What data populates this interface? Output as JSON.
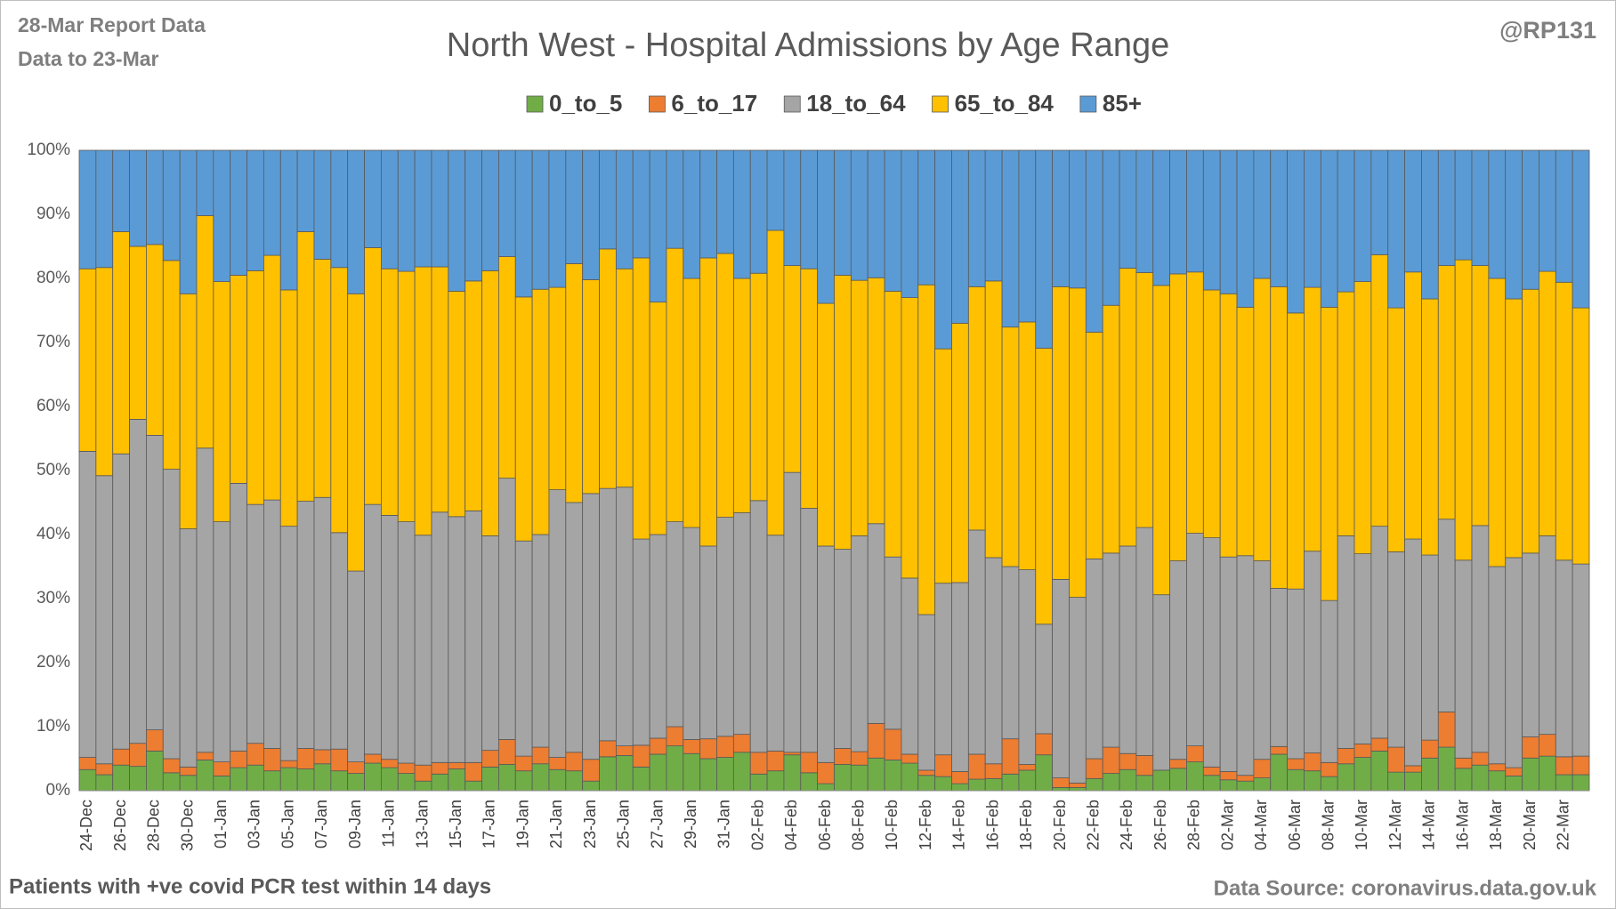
{
  "chart_data": {
    "type": "stacked_bar_100",
    "title": "North West - Hospital Admissions by Age Range",
    "report_note": "28-Mar Report Data",
    "data_note": "Data to 23-Mar",
    "author": "@RP131",
    "footnote": "Patients with  +ve covid PCR test within 14 days",
    "source": "Data Source: coronavirus.data.gov.uk",
    "legend": "top",
    "ylim": [
      0,
      100
    ],
    "yticks": [
      {
        "value": 0,
        "label": "0%"
      },
      {
        "value": 10,
        "label": "10%"
      },
      {
        "value": 20,
        "label": "20%"
      },
      {
        "value": 30,
        "label": "30%"
      },
      {
        "value": 40,
        "label": "40%"
      },
      {
        "value": 50,
        "label": "50%"
      },
      {
        "value": 60,
        "label": "60%"
      },
      {
        "value": 70,
        "label": "70%"
      },
      {
        "value": 80,
        "label": "80%"
      },
      {
        "value": 90,
        "label": "90%"
      },
      {
        "value": 100,
        "label": "100%"
      }
    ],
    "grid": true,
    "categories": [
      "24-Dec",
      null,
      "26-Dec",
      null,
      "28-Dec",
      null,
      "30-Dec",
      null,
      "01-Jan",
      null,
      "03-Jan",
      null,
      "05-Jan",
      null,
      "07-Jan",
      null,
      "09-Jan",
      null,
      "11-Jan",
      null,
      "13-Jan",
      null,
      "15-Jan",
      null,
      "17-Jan",
      null,
      "19-Jan",
      null,
      "21-Jan",
      null,
      "23-Jan",
      null,
      "25-Jan",
      null,
      "27-Jan",
      null,
      "29-Jan",
      null,
      "31-Jan",
      null,
      "02-Feb",
      null,
      "04-Feb",
      null,
      "06-Feb",
      null,
      "08-Feb",
      null,
      "10-Feb",
      null,
      "12-Feb",
      null,
      "14-Feb",
      null,
      "16-Feb",
      null,
      "18-Feb",
      null,
      "20-Feb",
      null,
      "22-Feb",
      null,
      "24-Feb",
      null,
      "26-Feb",
      null,
      "28-Feb",
      null,
      "02-Mar",
      null,
      "04-Mar",
      null,
      "06-Mar",
      null,
      "08-Mar",
      null,
      "10-Mar",
      null,
      "12-Mar",
      null,
      "14-Mar",
      null,
      "16-Mar",
      null,
      "18-Mar",
      null,
      "20-Mar",
      null,
      "22-Mar",
      null
    ],
    "series": [
      {
        "name": "0_to_5",
        "color": "#70ad47",
        "values": [
          3.3,
          2.5,
          4.0,
          3.8,
          6.2,
          2.8,
          2.4,
          4.8,
          2.3,
          3.6,
          4.0,
          3.1,
          3.6,
          3.4,
          4.2,
          3.1,
          2.7,
          4.3,
          3.6,
          2.7,
          1.5,
          2.6,
          3.4,
          1.5,
          3.7,
          4.1,
          3.1,
          4.2,
          3.3,
          3.1,
          1.5,
          5.3,
          5.5,
          3.7,
          5.7,
          7.0,
          5.8,
          5.0,
          5.2,
          6.0,
          2.6,
          3.1,
          5.6,
          2.8,
          1.1,
          4.1,
          4.0,
          5.1,
          4.8,
          4.3,
          2.4,
          2.2,
          1.1,
          1.8,
          1.9,
          2.6,
          3.2,
          5.6,
          0.5,
          0.5,
          1.9,
          2.7,
          3.3,
          2.4,
          3.2,
          3.5,
          4.5,
          2.4,
          1.7,
          1.5,
          2.0,
          5.7,
          3.3,
          3.1,
          2.2,
          4.2,
          5.2,
          6.2,
          2.9,
          2.9,
          5.1,
          6.8,
          3.5,
          4.0,
          3.1,
          2.3,
          5.1,
          5.4,
          2.5,
          2.5
        ]
      },
      {
        "name": "6_to_17",
        "color": "#ed7d31",
        "values": [
          1.9,
          1.7,
          2.5,
          3.6,
          3.3,
          2.2,
          1.3,
          1.2,
          2.2,
          2.6,
          3.4,
          3.5,
          1.1,
          3.2,
          2.2,
          3.4,
          1.8,
          1.4,
          1.3,
          1.6,
          2.5,
          1.8,
          1.0,
          2.9,
          2.6,
          3.9,
          2.3,
          2.6,
          1.9,
          2.9,
          3.4,
          2.5,
          1.5,
          3.4,
          2.5,
          3.0,
          2.2,
          3.1,
          3.3,
          2.8,
          3.4,
          3.1,
          0.4,
          3.2,
          3.3,
          2.5,
          2.1,
          5.4,
          4.8,
          1.4,
          0.8,
          3.4,
          1.9,
          3.9,
          2.3,
          5.5,
          0.9,
          3.3,
          1.5,
          0.7,
          3.1,
          4.1,
          2.5,
          3.1,
          0.0,
          1.4,
          2.5,
          1.3,
          1.3,
          0.9,
          2.9,
          1.2,
          1.7,
          2.8,
          2.2,
          2.4,
          2.1,
          2.0,
          3.9,
          1.0,
          2.8,
          5.5,
          1.6,
          2.0,
          1.1,
          1.3,
          3.3,
          3.4,
          2.8,
          2.9
        ]
      },
      {
        "name": "18_to_64",
        "color": "#a5a5a5",
        "values": [
          47.8,
          45.0,
          46.1,
          50.6,
          46.0,
          45.2,
          37.2,
          47.5,
          37.5,
          41.8,
          37.3,
          38.8,
          36.6,
          38.6,
          39.4,
          33.8,
          29.8,
          39.0,
          38.1,
          37.7,
          35.9,
          39.1,
          38.4,
          39.3,
          33.5,
          40.8,
          33.6,
          33.2,
          41.8,
          39.0,
          41.5,
          39.4,
          40.4,
          32.2,
          31.8,
          32.0,
          33.1,
          30.1,
          34.2,
          34.6,
          39.3,
          33.7,
          43.7,
          38.1,
          33.8,
          31.1,
          33.7,
          31.2,
          26.9,
          27.5,
          24.3,
          26.8,
          29.5,
          35.0,
          32.2,
          26.9,
          30.4,
          17.1,
          31.0,
          29.0,
          31.2,
          30.3,
          32.4,
          35.6,
          27.4,
          31.0,
          33.2,
          35.8,
          33.5,
          34.3,
          31.0,
          24.7,
          26.5,
          31.5,
          25.3,
          33.2,
          29.7,
          33.1,
          30.5,
          35.4,
          28.9,
          30.1,
          30.9,
          35.4,
          30.8,
          32.8,
          28.7,
          31.0,
          30.7,
          30.0
        ]
      },
      {
        "name": "65_to_84",
        "color": "#ffc000",
        "values": [
          28.5,
          32.5,
          34.7,
          27.0,
          29.8,
          32.6,
          36.7,
          36.3,
          37.5,
          32.5,
          36.5,
          38.2,
          36.9,
          42.1,
          37.2,
          41.4,
          43.3,
          40.1,
          38.5,
          39.1,
          41.9,
          38.3,
          35.2,
          35.9,
          41.4,
          34.6,
          38.1,
          38.3,
          31.6,
          37.3,
          33.4,
          37.4,
          34.1,
          43.9,
          36.3,
          42.7,
          38.9,
          45.0,
          41.2,
          36.6,
          35.5,
          47.6,
          32.3,
          37.4,
          37.9,
          42.8,
          39.9,
          38.4,
          41.5,
          43.8,
          51.5,
          36.6,
          40.5,
          38.0,
          43.2,
          37.4,
          38.7,
          43.1,
          45.7,
          48.3,
          35.4,
          38.7,
          43.4,
          39.8,
          48.3,
          44.8,
          40.8,
          38.7,
          41.1,
          38.8,
          44.1,
          47.1,
          43.1,
          41.2,
          45.8,
          38.1,
          42.5,
          42.4,
          38.1,
          41.7,
          40.0,
          39.6,
          46.9,
          40.6,
          45.0,
          40.4,
          41.2,
          41.3,
          43.4,
          40.0
        ]
      },
      {
        "name": "85+",
        "color": "#5b9bd5",
        "values": [
          18.5,
          18.3,
          12.7,
          15.0,
          14.7,
          17.2,
          22.4,
          10.2,
          20.5,
          19.5,
          18.8,
          16.4,
          21.8,
          12.7,
          17.0,
          18.3,
          22.4,
          15.2,
          18.5,
          18.9,
          18.2,
          18.2,
          22.0,
          20.4,
          18.8,
          16.6,
          22.9,
          21.7,
          21.4,
          17.7,
          20.2,
          15.4,
          18.5,
          16.8,
          23.7,
          15.3,
          20.0,
          16.8,
          16.1,
          20.0,
          19.2,
          12.5,
          18.0,
          18.5,
          23.9,
          19.5,
          20.3,
          19.9,
          22.0,
          23.0,
          21.0,
          31.0,
          27.0,
          21.3,
          20.4,
          27.6,
          26.8,
          30.9,
          21.3,
          21.5,
          28.4,
          24.2,
          18.4,
          19.1,
          21.1,
          19.3,
          19.0,
          21.8,
          22.4,
          24.5,
          20.0,
          21.3,
          25.4,
          21.4,
          24.5,
          22.1,
          20.5,
          16.3,
          24.6,
          19.0,
          23.2,
          18.0,
          17.1,
          18.0,
          20.0,
          23.2,
          21.7,
          18.9,
          20.6,
          24.6
        ]
      }
    ]
  }
}
